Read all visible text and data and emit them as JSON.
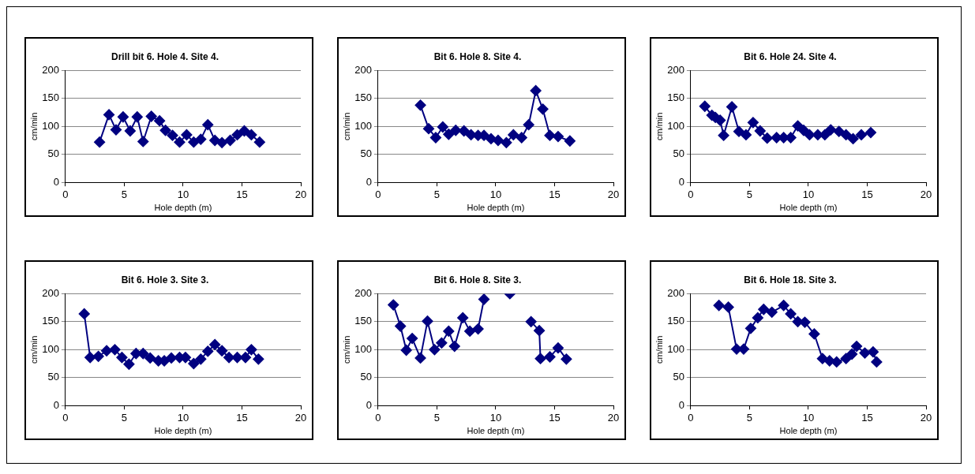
{
  "chart_data": [
    {
      "type": "line",
      "title": "Drill bit 6. Hole 4. Site 4.",
      "xlabel": "Hole depth (m)",
      "ylabel": "cm/min",
      "color": "#000080",
      "marker": "diamond",
      "grid": "y",
      "xlim": [
        0,
        20
      ],
      "xticks": [
        0,
        5,
        10,
        15,
        20
      ],
      "ylim": [
        0,
        200
      ],
      "yticks": [
        0,
        50,
        100,
        150,
        200
      ],
      "x": [
        2.9,
        3.7,
        4.3,
        4.9,
        5.5,
        6.1,
        6.6,
        7.3,
        8.0,
        8.5,
        9.1,
        9.7,
        10.3,
        10.9,
        11.5,
        12.1,
        12.7,
        13.3,
        14.0,
        14.6,
        15.2,
        15.8,
        16.5
      ],
      "values": [
        72,
        121,
        94,
        117,
        92,
        117,
        73,
        118,
        110,
        93,
        84,
        72,
        85,
        72,
        77,
        103,
        75,
        71,
        75,
        85,
        92,
        85,
        72
      ]
    },
    {
      "type": "line",
      "title": "Bit 6. Hole 8. Site 4.",
      "xlabel": "Hole depth (m)",
      "ylabel": "cm/min",
      "color": "#000080",
      "marker": "diamond",
      "grid": "y",
      "xlim": [
        0,
        20
      ],
      "xticks": [
        0,
        5,
        10,
        15,
        20
      ],
      "ylim": [
        0,
        200
      ],
      "yticks": [
        0,
        50,
        100,
        150,
        200
      ],
      "x": [
        3.6,
        4.3,
        4.9,
        5.5,
        6.0,
        6.6,
        7.3,
        7.9,
        8.5,
        9.0,
        9.6,
        10.2,
        10.9,
        11.5,
        12.2,
        12.8,
        13.4,
        14.0,
        14.6,
        15.3,
        16.3
      ],
      "values": [
        138,
        96,
        80,
        99,
        86,
        93,
        92,
        85,
        84,
        84,
        78,
        75,
        71,
        85,
        80,
        103,
        164,
        131,
        84,
        82,
        74
      ]
    },
    {
      "type": "line",
      "title": "Bit 6. Hole 24. Site 4.",
      "xlabel": "Hole depth (m)",
      "ylabel": "cm/min",
      "color": "#000080",
      "marker": "diamond",
      "grid": "y",
      "xlim": [
        0,
        20
      ],
      "xticks": [
        0,
        5,
        10,
        15,
        20
      ],
      "ylim": [
        0,
        200
      ],
      "yticks": [
        0,
        50,
        100,
        150,
        200
      ],
      "x": [
        1.2,
        1.8,
        2.1,
        2.5,
        2.8,
        3.5,
        4.1,
        4.7,
        5.3,
        5.9,
        6.5,
        7.3,
        7.9,
        8.5,
        9.1,
        9.6,
        10.1,
        10.8,
        11.4,
        11.9,
        12.6,
        13.2,
        13.8,
        14.5,
        15.3
      ],
      "values": [
        136,
        120,
        116,
        111,
        84,
        135,
        91,
        85,
        107,
        92,
        79,
        80,
        80,
        80,
        101,
        93,
        85,
        85,
        85,
        94,
        91,
        85,
        78,
        85,
        89
      ]
    },
    {
      "type": "line",
      "title": "Bit 6. Hole 3. Site 3.",
      "xlabel": "Hole depth (m)",
      "ylabel": "cm/min",
      "color": "#000080",
      "marker": "diamond",
      "grid": "y",
      "xlim": [
        0,
        20
      ],
      "xticks": [
        0,
        5,
        10,
        15,
        20
      ],
      "ylim": [
        0,
        200
      ],
      "yticks": [
        0,
        50,
        100,
        150,
        200
      ],
      "x": [
        1.6,
        2.1,
        2.8,
        3.5,
        4.2,
        4.8,
        5.4,
        6.0,
        6.6,
        7.2,
        7.9,
        8.4,
        9.0,
        9.7,
        10.2,
        10.9,
        11.5,
        12.1,
        12.7,
        13.3,
        13.9,
        14.6,
        15.3,
        15.8,
        16.4
      ],
      "values": [
        164,
        86,
        88,
        98,
        100,
        86,
        74,
        93,
        93,
        85,
        80,
        80,
        85,
        86,
        86,
        75,
        83,
        97,
        109,
        98,
        86,
        86,
        86,
        100,
        83
      ]
    },
    {
      "type": "line",
      "title": "Bit 6. Hole 8. Site 3.",
      "xlabel": "Hole depth (m)",
      "ylabel": "cm/min",
      "color": "#000080",
      "marker": "diamond",
      "grid": "y",
      "xlim": [
        0,
        20
      ],
      "xticks": [
        0,
        5,
        10,
        15,
        20
      ],
      "ylim": [
        0,
        200
      ],
      "yticks": [
        0,
        50,
        100,
        150,
        200
      ],
      "x": [
        1.3,
        1.9,
        2.4,
        2.9,
        3.6,
        4.2,
        4.8,
        5.4,
        6.0,
        6.5,
        7.2,
        7.8,
        8.5,
        9.0,
        10.0,
        11.2,
        12.4,
        13.0,
        13.7,
        13.8,
        14.6,
        15.3,
        16.0
      ],
      "values": [
        180,
        142,
        99,
        120,
        85,
        151,
        100,
        112,
        133,
        106,
        157,
        133,
        137,
        190,
        null,
        200,
        null,
        150,
        134,
        84,
        87,
        103,
        83
      ]
    },
    {
      "type": "line",
      "title": "Bit 6. Hole 18. Site 3.",
      "xlabel": "Hole depth (m)",
      "ylabel": "cm/min",
      "color": "#000080",
      "marker": "diamond",
      "grid": "y",
      "xlim": [
        0,
        20
      ],
      "xticks": [
        0,
        5,
        10,
        15,
        20
      ],
      "ylim": [
        0,
        200
      ],
      "yticks": [
        0,
        50,
        100,
        150,
        200
      ],
      "x": [
        2.4,
        3.2,
        3.9,
        4.5,
        5.1,
        5.7,
        6.2,
        6.9,
        7.9,
        8.5,
        9.1,
        9.7,
        10.5,
        11.2,
        11.8,
        12.4,
        13.2,
        13.7,
        14.1,
        14.8,
        15.5,
        15.8
      ],
      "values": [
        179,
        176,
        101,
        101,
        138,
        157,
        172,
        167,
        179,
        164,
        150,
        149,
        128,
        84,
        80,
        78,
        84,
        92,
        106,
        94,
        96,
        78
      ]
    }
  ]
}
